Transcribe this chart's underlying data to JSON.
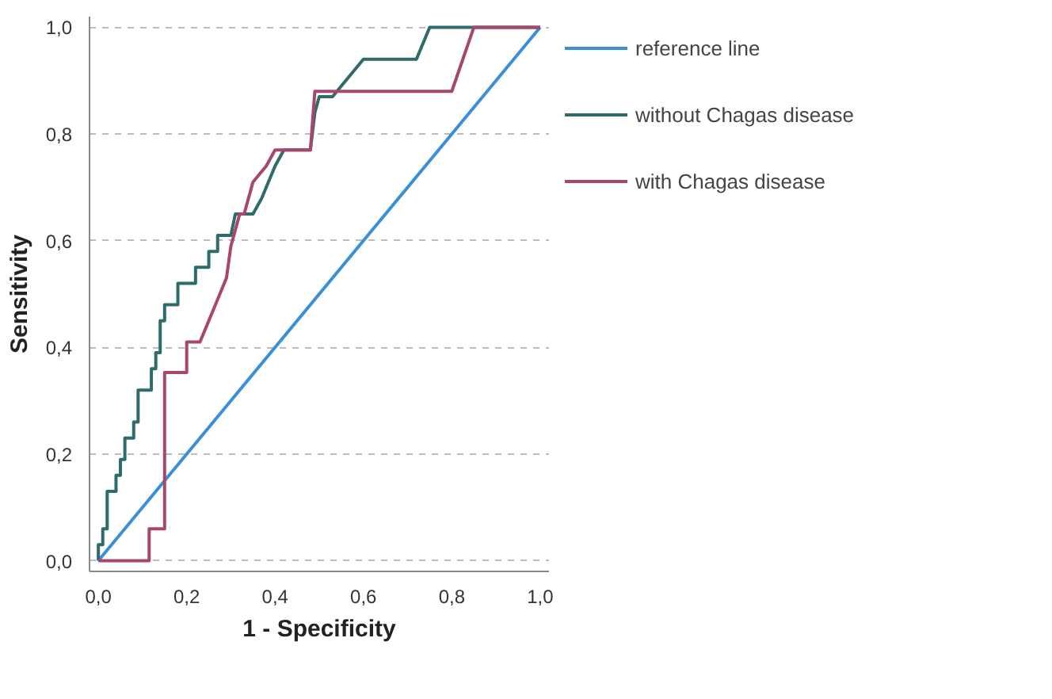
{
  "chart_data": {
    "type": "line",
    "xlabel": "1 - Specificity",
    "ylabel": "Sensitivity",
    "xlim": [
      -0.02,
      1.02
    ],
    "ylim": [
      -0.02,
      1.02
    ],
    "xticks": [
      {
        "value": 0,
        "label": "0,0"
      },
      {
        "value": 0.2,
        "label": "0,2"
      },
      {
        "value": 0.4,
        "label": "0,4"
      },
      {
        "value": 0.6,
        "label": "0,6"
      },
      {
        "value": 0.8,
        "label": "0,8"
      },
      {
        "value": 1,
        "label": "1,0"
      }
    ],
    "yticks": [
      {
        "value": 0,
        "label": "0,0"
      },
      {
        "value": 0.2,
        "label": "0,2"
      },
      {
        "value": 0.4,
        "label": "0,4"
      },
      {
        "value": 0.6,
        "label": "0,6"
      },
      {
        "value": 0.8,
        "label": "0,8"
      },
      {
        "value": 1,
        "label": "1,0"
      }
    ],
    "grid": "y",
    "legend": "right",
    "line_style": "solid",
    "series": [
      {
        "name": "reference line",
        "color": "#3a8fd9",
        "x": [
          0,
          1
        ],
        "values": [
          0,
          1
        ]
      },
      {
        "name": "without Chagas disease",
        "color": "#2e6b6b",
        "x": [
          0,
          0,
          0.01,
          0.01,
          0.02,
          0.02,
          0.04,
          0.04,
          0.05,
          0.05,
          0.06,
          0.06,
          0.08,
          0.08,
          0.09,
          0.09,
          0.12,
          0.12,
          0.13,
          0.13,
          0.14,
          0.14,
          0.15,
          0.15,
          0.18,
          0.18,
          0.22,
          0.22,
          0.25,
          0.25,
          0.27,
          0.27,
          0.3,
          0.31,
          0.35,
          0.37,
          0.4,
          0.42,
          0.48,
          0.49,
          0.5,
          0.53,
          0.58,
          0.6,
          0.72,
          0.75,
          1
        ],
        "values": [
          0,
          0.03,
          0.03,
          0.06,
          0.06,
          0.13,
          0.13,
          0.16,
          0.16,
          0.19,
          0.19,
          0.23,
          0.23,
          0.26,
          0.26,
          0.32,
          0.32,
          0.36,
          0.36,
          0.39,
          0.39,
          0.45,
          0.45,
          0.48,
          0.48,
          0.52,
          0.52,
          0.55,
          0.55,
          0.58,
          0.58,
          0.61,
          0.61,
          0.65,
          0.65,
          0.68,
          0.74,
          0.77,
          0.77,
          0.84,
          0.87,
          0.87,
          0.92,
          0.94,
          0.94,
          1,
          1
        ]
      },
      {
        "name": "with Chagas disease",
        "color": "#a8466e",
        "x": [
          0,
          0.115,
          0.115,
          0.15,
          0.15,
          0.2,
          0.2,
          0.23,
          0.26,
          0.26,
          0.29,
          0.29,
          0.3,
          0.32,
          0.33,
          0.35,
          0.38,
          0.4,
          0.48,
          0.49,
          0.8,
          0.85,
          1
        ],
        "values": [
          0,
          0,
          0.06,
          0.06,
          0.353,
          0.353,
          0.41,
          0.41,
          0.47,
          0.47,
          0.53,
          0.53,
          0.59,
          0.65,
          0.65,
          0.71,
          0.74,
          0.77,
          0.77,
          0.88,
          0.88,
          1,
          1
        ]
      }
    ]
  }
}
